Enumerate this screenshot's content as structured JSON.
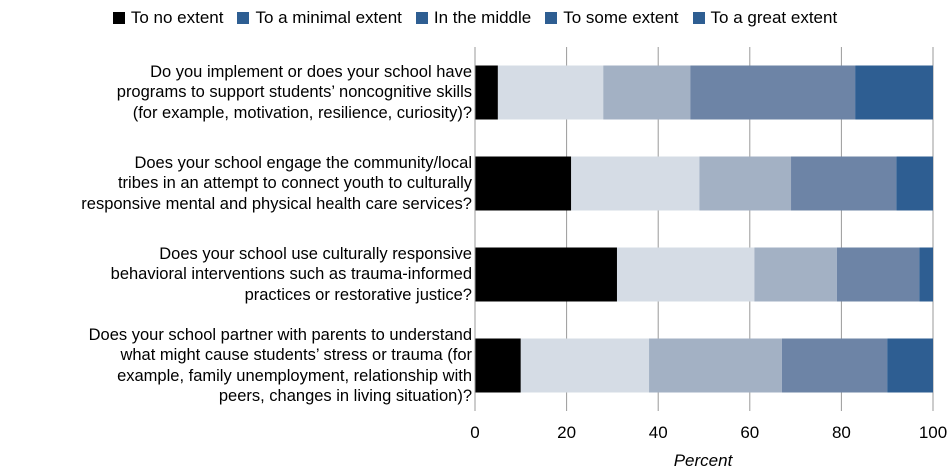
{
  "chart_data": {
    "type": "bar",
    "orientation": "horizontal",
    "stacked": true,
    "categories": [
      "Do you implement or does your school have programs to support students’ noncognitive skills (for example, motivation, resilience, curiosity)?",
      "Does your school engage the community/local tribes in an attempt to connect youth to culturally responsive mental and physical health care services?",
      "Does your school use culturally responsive behavioral interventions such as trauma-informed practices or restorative justice?",
      "Does your school partner with parents to understand what might cause students’ stress or trauma (for example, family unemployment, relationship with peers, changes in living situation)?"
    ],
    "category_lines": [
      [
        "Do you implement or does your school have",
        "programs to support students’ noncognitive skills",
        "(for example, motivation, resilience, curiosity)?"
      ],
      [
        "Does your school engage the community/local",
        "tribes in an attempt to connect youth to culturally",
        "responsive mental and physical health care services?"
      ],
      [
        "Does your school use culturally responsive",
        "behavioral interventions such as trauma-informed",
        "practices or restorative justice?"
      ],
      [
        "Does your school partner with parents to understand",
        "what might cause students’ stress or trauma (for",
        "example, family unemployment, relationship with",
        "peers, changes in living situation)?"
      ]
    ],
    "series": [
      {
        "name": "To no extent",
        "color": "#000000",
        "values": [
          5,
          21,
          31,
          10
        ]
      },
      {
        "name": "To a minimal extent",
        "color": "#d5dce5",
        "values": [
          23,
          28,
          30,
          28
        ]
      },
      {
        "name": "In the middle",
        "color": "#a3b1c4",
        "values": [
          19,
          20,
          18,
          29
        ]
      },
      {
        "name": "To some extent",
        "color": "#6d84a6",
        "values": [
          36,
          23,
          18,
          23
        ]
      },
      {
        "name": "To a great extent",
        "color": "#2e5e92",
        "values": [
          17,
          8,
          3,
          10
        ]
      }
    ],
    "legend_colors": [
      "#000000",
      "#2e5e92",
      "#2e5e92",
      "#2e5e92",
      "#2e5e92"
    ],
    "xlabel": "Percent",
    "xlim": [
      0,
      100
    ],
    "xticks": [
      0,
      20,
      40,
      60,
      80,
      100
    ],
    "grid": true,
    "legend_position": "top"
  }
}
